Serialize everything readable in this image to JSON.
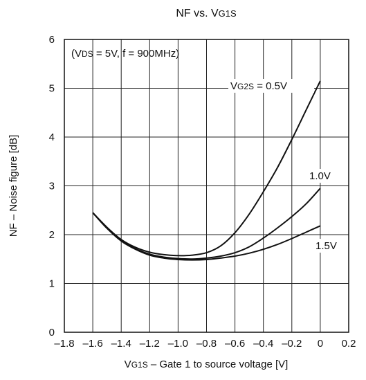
{
  "chart_data": {
    "type": "line",
    "title": "NF vs. VG1S",
    "title_parts": [
      "NF vs. V",
      "G1S"
    ],
    "xlabel": "VG1S – Gate 1 to source voltage [V]",
    "xlabel_parts": [
      "V",
      "G1S",
      " – Gate 1 to source voltage [V]"
    ],
    "ylabel": "NF – Noise figure [dB]",
    "xlim": [
      -1.8,
      0.2
    ],
    "ylim": [
      0,
      6
    ],
    "x_ticks": [
      -1.8,
      -1.6,
      -1.4,
      -1.2,
      -1.0,
      -0.8,
      -0.6,
      -0.4,
      -0.2,
      0,
      0.2
    ],
    "x_tick_labels": [
      "–1.8",
      "–1.6",
      "–1.4",
      "–1.2",
      "–1.0",
      "–0.8",
      "–0.6",
      "–0.4",
      "–0.2",
      "0",
      "0.2"
    ],
    "y_ticks": [
      0,
      1,
      2,
      3,
      4,
      5,
      6
    ],
    "y_tick_labels": [
      "0",
      "1",
      "2",
      "3",
      "4",
      "5",
      "6"
    ],
    "grid": true,
    "line_color": "#111111",
    "grid_color": "#222222",
    "annotation": {
      "text": "(VDS = 5V, f = 900MHz)",
      "parts": [
        "(V",
        "DS",
        " = 5V, f = 900MHz)"
      ]
    },
    "series": [
      {
        "name": "VG2S = 0.5V",
        "name_parts": [
          "V",
          "G2S",
          " = 0.5V"
        ],
        "x": [
          -1.6,
          -1.5,
          -1.4,
          -1.3,
          -1.2,
          -1.1,
          -1.0,
          -0.9,
          -0.8,
          -0.7,
          -0.6,
          -0.5,
          -0.4,
          -0.3,
          -0.2,
          -0.1,
          0.0
        ],
        "y": [
          2.45,
          2.15,
          1.9,
          1.74,
          1.64,
          1.59,
          1.57,
          1.58,
          1.63,
          1.77,
          2.04,
          2.42,
          2.88,
          3.38,
          3.95,
          4.55,
          5.15
        ]
      },
      {
        "name": "1.0V",
        "name_parts": [
          "1.0V"
        ],
        "x": [
          -1.6,
          -1.5,
          -1.4,
          -1.3,
          -1.2,
          -1.1,
          -1.0,
          -0.9,
          -0.8,
          -0.7,
          -0.6,
          -0.5,
          -0.4,
          -0.3,
          -0.2,
          -0.1,
          0.0
        ],
        "y": [
          2.45,
          2.13,
          1.88,
          1.71,
          1.6,
          1.54,
          1.51,
          1.5,
          1.52,
          1.56,
          1.63,
          1.75,
          1.93,
          2.14,
          2.37,
          2.63,
          2.95
        ]
      },
      {
        "name": "1.5V",
        "name_parts": [
          "1.5V"
        ],
        "x": [
          -1.6,
          -1.5,
          -1.4,
          -1.3,
          -1.2,
          -1.1,
          -1.0,
          -0.9,
          -0.8,
          -0.7,
          -0.6,
          -0.5,
          -0.4,
          -0.3,
          -0.2,
          -0.1,
          0.0
        ],
        "y": [
          2.45,
          2.13,
          1.87,
          1.7,
          1.58,
          1.52,
          1.49,
          1.48,
          1.49,
          1.52,
          1.56,
          1.62,
          1.7,
          1.8,
          1.92,
          2.05,
          2.18
        ]
      }
    ]
  }
}
